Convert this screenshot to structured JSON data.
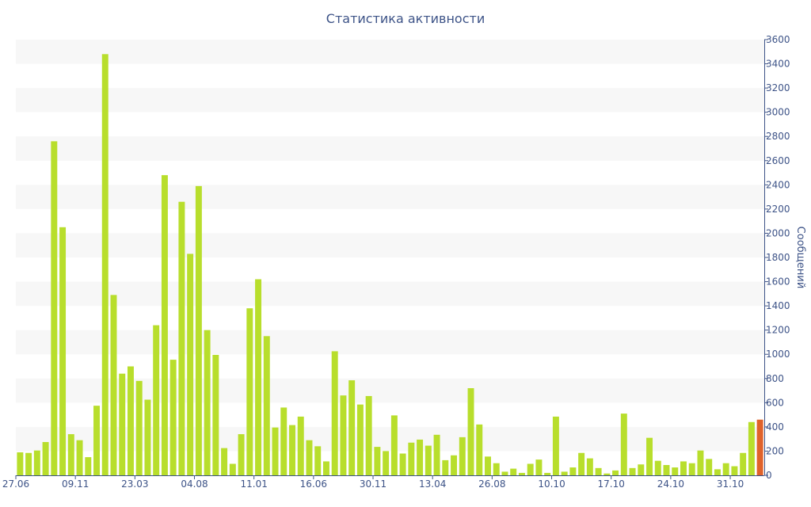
{
  "chart_data": {
    "type": "bar",
    "title": "Статистика активности",
    "ylabel": "Сообщений",
    "ylim": [
      0,
      3600
    ],
    "y_ticks": [
      0,
      200,
      400,
      600,
      800,
      1000,
      1200,
      1400,
      1600,
      1800,
      2000,
      2200,
      2400,
      2600,
      2800,
      3000,
      3200,
      3400,
      3600
    ],
    "y_axis_side": "right",
    "grid": "alternating horizontal bands",
    "x_tick_labels": [
      {
        "index": 0,
        "label": "27.06"
      },
      {
        "index": 7,
        "label": "09.11"
      },
      {
        "index": 14,
        "label": "23.03"
      },
      {
        "index": 21,
        "label": "04.08"
      },
      {
        "index": 28,
        "label": "11.01"
      },
      {
        "index": 35,
        "label": "16.06"
      },
      {
        "index": 42,
        "label": "30.11"
      },
      {
        "index": 49,
        "label": "13.04"
      },
      {
        "index": 56,
        "label": "26.08"
      },
      {
        "index": 63,
        "label": "10.10"
      },
      {
        "index": 70,
        "label": "17.10"
      },
      {
        "index": 77,
        "label": "24.10"
      },
      {
        "index": 84,
        "label": "31.10"
      }
    ],
    "values": [
      190,
      185,
      205,
      275,
      2760,
      2050,
      340,
      290,
      150,
      575,
      3480,
      1490,
      840,
      900,
      780,
      625,
      1240,
      2480,
      955,
      2260,
      1830,
      2390,
      1200,
      995,
      225,
      95,
      340,
      1380,
      1620,
      1150,
      395,
      560,
      415,
      485,
      290,
      240,
      115,
      1025,
      660,
      785,
      585,
      655,
      235,
      200,
      495,
      180,
      270,
      295,
      245,
      335,
      125,
      165,
      315,
      720,
      420,
      155,
      100,
      30,
      55,
      20,
      95,
      130,
      20,
      485,
      30,
      65,
      185,
      140,
      60,
      15,
      40,
      510,
      60,
      90,
      310,
      120,
      85,
      65,
      115,
      100,
      205,
      135,
      50,
      100,
      75,
      185,
      440,
      460
    ],
    "highlight_last": true,
    "colors": {
      "bar": "#b8de2c",
      "highlight": "#e0622a",
      "band": "#f7f7f7",
      "text": "#3d5387",
      "axis": "#3d5387"
    }
  }
}
